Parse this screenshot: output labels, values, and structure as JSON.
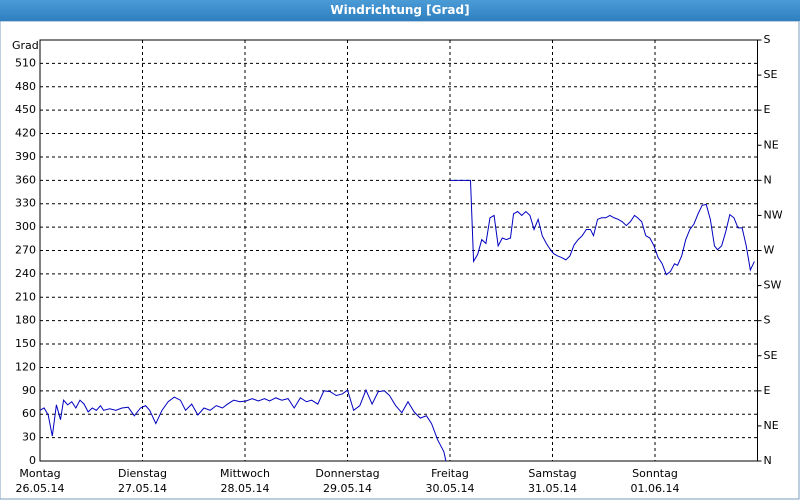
{
  "chart_data": {
    "type": "line",
    "title": "Windrichtung [Grad]",
    "ylabel": "Grad",
    "xlim": [
      0,
      7
    ],
    "ylim": [
      0,
      540
    ],
    "y2lim": [
      0,
      540
    ],
    "xticks": [
      {
        "value": 0,
        "label": [
          "Montag",
          "26.05.14"
        ]
      },
      {
        "value": 1,
        "label": [
          "Dienstag",
          "27.05.14"
        ]
      },
      {
        "value": 2,
        "label": [
          "Mittwoch",
          "28.05.14"
        ]
      },
      {
        "value": 3,
        "label": [
          "Donnerstag",
          "29.05.14"
        ]
      },
      {
        "value": 4,
        "label": [
          "Freitag",
          "30.05.14"
        ]
      },
      {
        "value": 5,
        "label": [
          "Samstag",
          "31.05.14"
        ]
      },
      {
        "value": 6,
        "label": [
          "Sonntag",
          "01.06.14"
        ]
      }
    ],
    "yticks": [
      0,
      30,
      60,
      90,
      120,
      150,
      180,
      210,
      240,
      270,
      300,
      330,
      360,
      390,
      420,
      450,
      480,
      510
    ],
    "y2ticks": [
      {
        "value": 0,
        "label": "N"
      },
      {
        "value": 45,
        "label": "NE"
      },
      {
        "value": 90,
        "label": "E"
      },
      {
        "value": 135,
        "label": "SE"
      },
      {
        "value": 180,
        "label": "S"
      },
      {
        "value": 225,
        "label": "SW"
      },
      {
        "value": 270,
        "label": "W"
      },
      {
        "value": 315,
        "label": "NW"
      },
      {
        "value": 360,
        "label": "N"
      },
      {
        "value": 405,
        "label": "NE"
      },
      {
        "value": 450,
        "label": "E"
      },
      {
        "value": 495,
        "label": "SE"
      },
      {
        "value": 540,
        "label": "S"
      }
    ],
    "grid": true,
    "series": [
      {
        "color": "#0000c0",
        "x": [
          0,
          0.04,
          0.08,
          0.12,
          0.16,
          0.2,
          0.23,
          0.27,
          0.31,
          0.35,
          0.39,
          0.43,
          0.47,
          0.51,
          0.55,
          0.59,
          0.62,
          0.68,
          0.74,
          0.8,
          0.86,
          0.92,
          0.98,
          1.03,
          1.07,
          1.13,
          1.19,
          1.25,
          1.31,
          1.37,
          1.42,
          1.48,
          1.54,
          1.6,
          1.66,
          1.72,
          1.78,
          1.83,
          1.89,
          1.95,
          2.01,
          2.07,
          2.13,
          2.19,
          2.24,
          2.3,
          2.36,
          2.42,
          2.48,
          2.54,
          2.6,
          2.65,
          2.71,
          2.77,
          2.83,
          2.89,
          2.95,
          3.0,
          3.06,
          3.12,
          3.18,
          3.24,
          3.3,
          3.36,
          3.41,
          3.47,
          3.53,
          3.59,
          3.65,
          3.71,
          3.77,
          3.82,
          3.88,
          3.94,
          3.96,
          3.98,
          4.0,
          4.08,
          4.16,
          4.2,
          4.23,
          4.27,
          4.31,
          4.35,
          4.39,
          4.43,
          4.47,
          4.51,
          4.55,
          4.59,
          4.62,
          4.66,
          4.7,
          4.74,
          4.78,
          4.82,
          4.86,
          4.9,
          4.94,
          4.98,
          5.01,
          5.05,
          5.09,
          5.13,
          5.17,
          5.21,
          5.25,
          5.29,
          5.33,
          5.37,
          5.4,
          5.44,
          5.48,
          5.52,
          5.56,
          5.6,
          5.64,
          5.68,
          5.72,
          5.76,
          5.8,
          5.83,
          5.87,
          5.91,
          5.95,
          5.99,
          6.03,
          6.07,
          6.11,
          6.15,
          6.19,
          6.22,
          6.26,
          6.3,
          6.34,
          6.38,
          6.42,
          6.46,
          6.5,
          6.54,
          6.58,
          6.61,
          6.65,
          6.69,
          6.73,
          6.77,
          6.81,
          6.85,
          6.89,
          6.93,
          6.97
        ],
        "values": [
          65,
          68,
          59,
          32,
          72,
          53,
          78,
          72,
          76,
          68,
          78,
          73,
          63,
          68,
          65,
          71,
          65,
          67,
          65,
          68,
          69,
          58,
          68,
          71,
          65,
          48,
          65,
          76,
          82,
          78,
          65,
          73,
          59,
          68,
          65,
          71,
          68,
          73,
          78,
          76,
          77,
          80,
          77,
          80,
          77,
          81,
          78,
          80,
          68,
          81,
          76,
          78,
          73,
          90,
          89,
          84,
          86,
          91,
          65,
          71,
          91,
          73,
          89,
          90,
          84,
          71,
          62,
          76,
          63,
          55,
          58,
          48,
          27,
          12,
          0,
          null,
          360,
          360,
          360,
          360,
          256,
          265,
          284,
          279,
          312,
          315,
          276,
          286,
          284,
          286,
          317,
          320,
          315,
          320,
          315,
          297,
          310,
          289,
          279,
          271,
          266,
          263,
          261,
          258,
          263,
          277,
          284,
          289,
          297,
          297,
          289,
          310,
          312,
          312,
          315,
          312,
          310,
          307,
          302,
          307,
          315,
          312,
          307,
          289,
          286,
          276,
          261,
          253,
          239,
          243,
          253,
          251,
          263,
          284,
          297,
          304,
          317,
          328,
          329,
          310,
          276,
          271,
          276,
          294,
          316,
          312,
          299,
          299,
          276,
          245,
          256
        ]
      }
    ]
  }
}
